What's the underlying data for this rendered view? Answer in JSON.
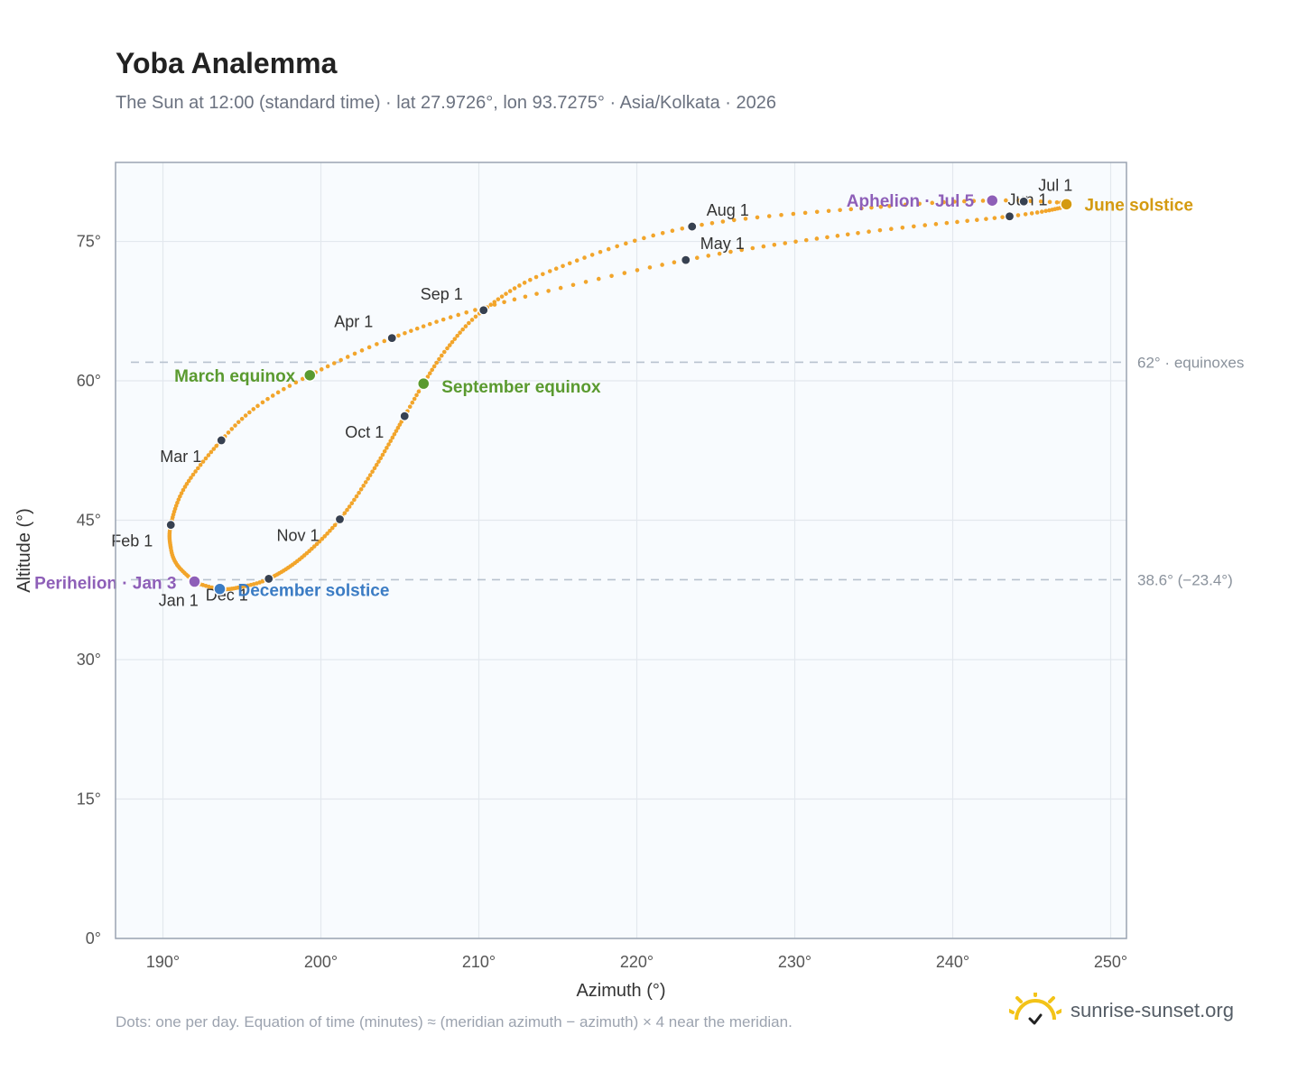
{
  "title": "Yoba Analemma",
  "subtitle": "The Sun at 12:00 (standard time) · lat 27.9726°, lon 93.7275° · Asia/Kolkata · 2026",
  "footnote": "Dots: one per day. Equation of time (minutes) ≈ (meridian azimuth − azimuth) × 4 near the meridian.",
  "brand": "sunrise-sunset.org",
  "colors": {
    "curve": "#f2a52b",
    "month_dot": "#374151",
    "equinox": "#5a9a2f",
    "june_solstice": "#d49a10",
    "december_solstice": "#3b7cc4",
    "apsis": "#8e5fb8",
    "reference_line": "#b8c2cf",
    "plot_bg": "#f8fbfe",
    "grid": "#e3e8ee",
    "frame": "#9aa4b2"
  },
  "chart_data": {
    "type": "scatter",
    "xlabel": "Azimuth (°)",
    "ylabel": "Altitude (°)",
    "xlim": [
      187,
      251
    ],
    "ylim": [
      0,
      83.5
    ],
    "x_ticks": [
      190,
      200,
      210,
      220,
      230,
      240,
      250
    ],
    "x_tick_labels": [
      "190°",
      "200°",
      "210°",
      "220°",
      "230°",
      "240°",
      "250°"
    ],
    "y_ticks": [
      0,
      15,
      30,
      45,
      60,
      75
    ],
    "y_tick_labels": [
      "0°",
      "15°",
      "30°",
      "45°",
      "60°",
      "75°"
    ],
    "grid": true,
    "reference_lines": [
      {
        "value": 62.0,
        "label": "62° · equinoxes"
      },
      {
        "value": 38.6,
        "label": "38.6° (−23.4°)"
      }
    ],
    "month_markers": [
      {
        "label": "Jan 1",
        "az": 191.9,
        "alt": 38.5
      },
      {
        "label": "Feb 1",
        "az": 190.5,
        "alt": 44.5
      },
      {
        "label": "Mar 1",
        "az": 193.7,
        "alt": 53.6
      },
      {
        "label": "Apr 1",
        "az": 204.5,
        "alt": 64.6
      },
      {
        "label": "May 1",
        "az": 223.1,
        "alt": 73.0
      },
      {
        "label": "Jun 1",
        "az": 243.6,
        "alt": 77.7
      },
      {
        "label": "Jul 1",
        "az": 244.5,
        "alt": 79.3
      },
      {
        "label": "Aug 1",
        "az": 223.5,
        "alt": 76.6
      },
      {
        "label": "Sep 1",
        "az": 210.3,
        "alt": 67.6
      },
      {
        "label": "Oct 1",
        "az": 205.3,
        "alt": 56.2
      },
      {
        "label": "Nov 1",
        "az": 201.2,
        "alt": 45.1
      },
      {
        "label": "Dec 1",
        "az": 196.7,
        "alt": 38.7
      }
    ],
    "events": [
      {
        "label": "March equinox",
        "az": 199.3,
        "alt": 60.6,
        "kind": "equinox"
      },
      {
        "label": "September equinox",
        "az": 206.5,
        "alt": 59.7,
        "kind": "equinox"
      },
      {
        "label": "June solstice",
        "az": 247.2,
        "alt": 79.0,
        "kind": "june"
      },
      {
        "label": "December solstice",
        "az": 193.6,
        "alt": 37.6,
        "kind": "december"
      },
      {
        "label": "Perihelion · Jan 3",
        "az": 192.0,
        "alt": 38.4,
        "kind": "apsis"
      },
      {
        "label": "Aphelion · Jul 5",
        "az": 242.5,
        "alt": 79.4,
        "kind": "apsis"
      }
    ],
    "path_waypoints_by_day": [
      {
        "day": 1,
        "az": 191.9,
        "alt": 38.5
      },
      {
        "day": 12,
        "az": 190.9,
        "alt": 40.2
      },
      {
        "day": 20,
        "az": 190.5,
        "alt": 42.0
      },
      {
        "day": 32,
        "az": 190.5,
        "alt": 44.5
      },
      {
        "day": 45,
        "az": 191.4,
        "alt": 48.6
      },
      {
        "day": 60,
        "az": 193.7,
        "alt": 53.6
      },
      {
        "day": 70,
        "az": 196.0,
        "alt": 57.3
      },
      {
        "day": 79,
        "az": 199.3,
        "alt": 60.6
      },
      {
        "day": 91,
        "az": 204.5,
        "alt": 64.6
      },
      {
        "day": 105,
        "az": 211.0,
        "alt": 68.2
      },
      {
        "day": 121,
        "az": 223.1,
        "alt": 73.0
      },
      {
        "day": 137,
        "az": 234.0,
        "alt": 75.9
      },
      {
        "day": 152,
        "az": 243.6,
        "alt": 77.7
      },
      {
        "day": 163,
        "az": 246.8,
        "alt": 78.6
      },
      {
        "day": 172,
        "az": 247.2,
        "alt": 79.0
      },
      {
        "day": 180,
        "az": 246.6,
        "alt": 79.2
      },
      {
        "day": 186,
        "az": 242.5,
        "alt": 79.4
      },
      {
        "day": 195,
        "az": 236.0,
        "alt": 78.8
      },
      {
        "day": 213,
        "az": 223.5,
        "alt": 76.6
      },
      {
        "day": 230,
        "az": 214.5,
        "alt": 71.8
      },
      {
        "day": 244,
        "az": 210.3,
        "alt": 67.6
      },
      {
        "day": 256,
        "az": 208.0,
        "alt": 63.5
      },
      {
        "day": 266,
        "az": 206.5,
        "alt": 59.7
      },
      {
        "day": 274,
        "az": 205.3,
        "alt": 56.2
      },
      {
        "day": 290,
        "az": 203.4,
        "alt": 50.6
      },
      {
        "day": 305,
        "az": 201.2,
        "alt": 45.1
      },
      {
        "day": 320,
        "az": 198.8,
        "alt": 41.0
      },
      {
        "day": 335,
        "az": 196.7,
        "alt": 38.7
      },
      {
        "day": 345,
        "az": 194.9,
        "alt": 37.8
      },
      {
        "day": 355,
        "az": 193.6,
        "alt": 37.6
      },
      {
        "day": 365,
        "az": 192.0,
        "alt": 38.3
      }
    ]
  }
}
